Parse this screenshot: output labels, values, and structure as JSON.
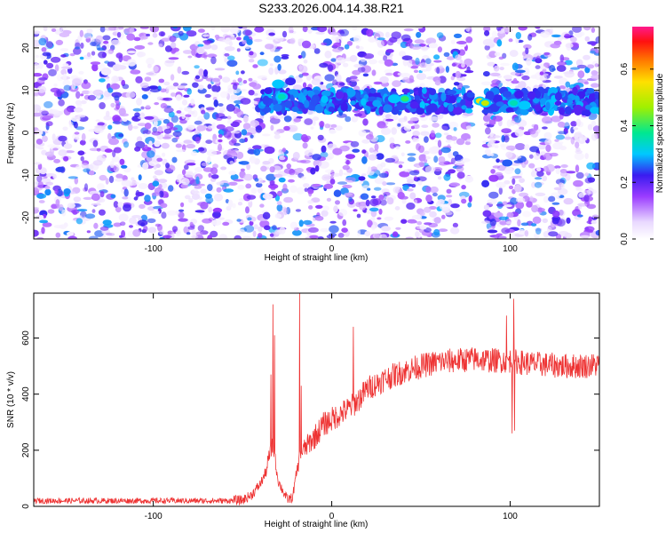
{
  "title": "S233.2026.004.14.38.R21",
  "chart_data": [
    {
      "type": "heatmap",
      "name": "spectrogram",
      "xlabel": "Height of straight line (km)",
      "ylabel": "Frequency (Hz)",
      "xlim": [
        -167,
        150
      ],
      "ylim": [
        -25,
        25
      ],
      "xticks": [
        -100,
        0,
        100
      ],
      "yticks": [
        -20,
        -10,
        0,
        10,
        20
      ],
      "colorbar": {
        "label": "Normalized spectral amplitude",
        "range": [
          0,
          0.75
        ],
        "ticks": [
          0.0,
          0.2,
          0.4,
          0.6
        ]
      },
      "features": {
        "signal_line_freq_hz": 7.5,
        "signal_start_km": -40,
        "gap_km": [
          78,
          86
        ],
        "hotspots": [
          {
            "x": -28,
            "y": 8.5,
            "amp": 0.35
          },
          {
            "x": -30,
            "y": 11.5,
            "amp": 0.3
          },
          {
            "x": 35,
            "y": 8,
            "amp": 0.3
          },
          {
            "x": 41,
            "y": 8,
            "amp": 0.4
          },
          {
            "x": 83,
            "y": 7.5,
            "amp": 0.55
          },
          {
            "x": 86,
            "y": 7,
            "amp": 0.5
          },
          {
            "x": 102,
            "y": 7,
            "amp": 0.35
          },
          {
            "x": 108,
            "y": 6.5,
            "amp": 0.3
          }
        ]
      }
    },
    {
      "type": "line",
      "name": "snr",
      "color": "#ee3333",
      "xlabel": "Height of straight line (km)",
      "ylabel": "SNR (10 * v/v)",
      "xlim": [
        -167,
        150
      ],
      "ylim": [
        0,
        760
      ],
      "xticks": [
        -100,
        0,
        100
      ],
      "yticks": [
        0,
        200,
        400,
        600
      ],
      "envelope": {
        "x": [
          -167,
          -60,
          -50,
          -45,
          -40,
          -37,
          -35,
          -33,
          -30,
          -27,
          -25,
          -22,
          -20,
          -18,
          -16,
          -12,
          -8,
          -5,
          0,
          5,
          10,
          15,
          20,
          30,
          40,
          50,
          60,
          70,
          80,
          90,
          100,
          110,
          120,
          130,
          140,
          150
        ],
        "y": [
          20,
          20,
          22,
          40,
          80,
          120,
          180,
          220,
          90,
          50,
          25,
          30,
          110,
          170,
          200,
          230,
          260,
          290,
          310,
          330,
          350,
          380,
          420,
          455,
          480,
          500,
          515,
          520,
          525,
          520,
          520,
          510,
          505,
          500,
          500,
          505
        ]
      },
      "spikes": [
        {
          "x": -33,
          "y": 720
        },
        {
          "x": -32,
          "y": 610
        },
        {
          "x": -34,
          "y": 470
        },
        {
          "x": -18,
          "y": 760
        },
        {
          "x": -17,
          "y": 430
        },
        {
          "x": 12,
          "y": 640
        },
        {
          "x": 98,
          "y": 680
        },
        {
          "x": 102,
          "y": 740
        },
        {
          "x": 101,
          "y": 260
        },
        {
          "x": 102.5,
          "y": 270
        }
      ],
      "noise_amplitude": 45
    }
  ]
}
